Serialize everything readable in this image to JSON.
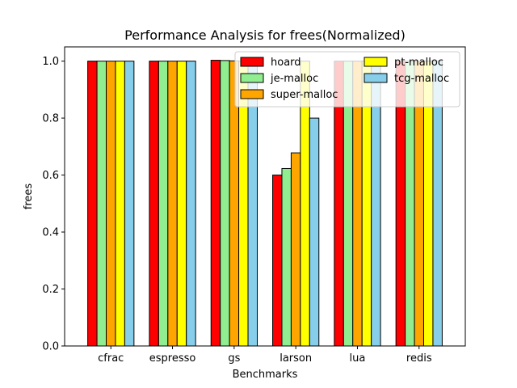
{
  "chart_data": {
    "type": "bar",
    "title": "Performance Analysis for frees(Normalized)",
    "xlabel": "Benchmarks",
    "ylabel": "frees",
    "ylim": [
      0,
      1.05
    ],
    "yticks": [
      0.0,
      0.2,
      0.4,
      0.6,
      0.8,
      1.0
    ],
    "grid": false,
    "legend_position": "top-right",
    "categories": [
      "cfrac",
      "espresso",
      "gs",
      "larson",
      "lua",
      "redis"
    ],
    "series": [
      {
        "name": "hoard",
        "color": "#ff0000",
        "values": [
          1.0,
          1.0,
          1.003,
          0.6,
          1.0,
          1.0
        ]
      },
      {
        "name": "je-malloc",
        "color": "#90ee90",
        "values": [
          1.0,
          1.0,
          1.002,
          0.623,
          1.0,
          1.0
        ]
      },
      {
        "name": "super-malloc",
        "color": "#ffa500",
        "values": [
          1.0,
          1.0,
          1.001,
          0.678,
          1.0,
          1.0
        ]
      },
      {
        "name": "pt-malloc",
        "color": "#ffff00",
        "values": [
          1.0,
          1.0,
          1.0,
          1.0,
          1.0,
          1.0
        ]
      },
      {
        "name": "tcg-malloc",
        "color": "#87ceeb",
        "values": [
          1.0,
          1.0,
          1.0,
          0.8,
          1.0,
          1.0
        ]
      }
    ]
  }
}
